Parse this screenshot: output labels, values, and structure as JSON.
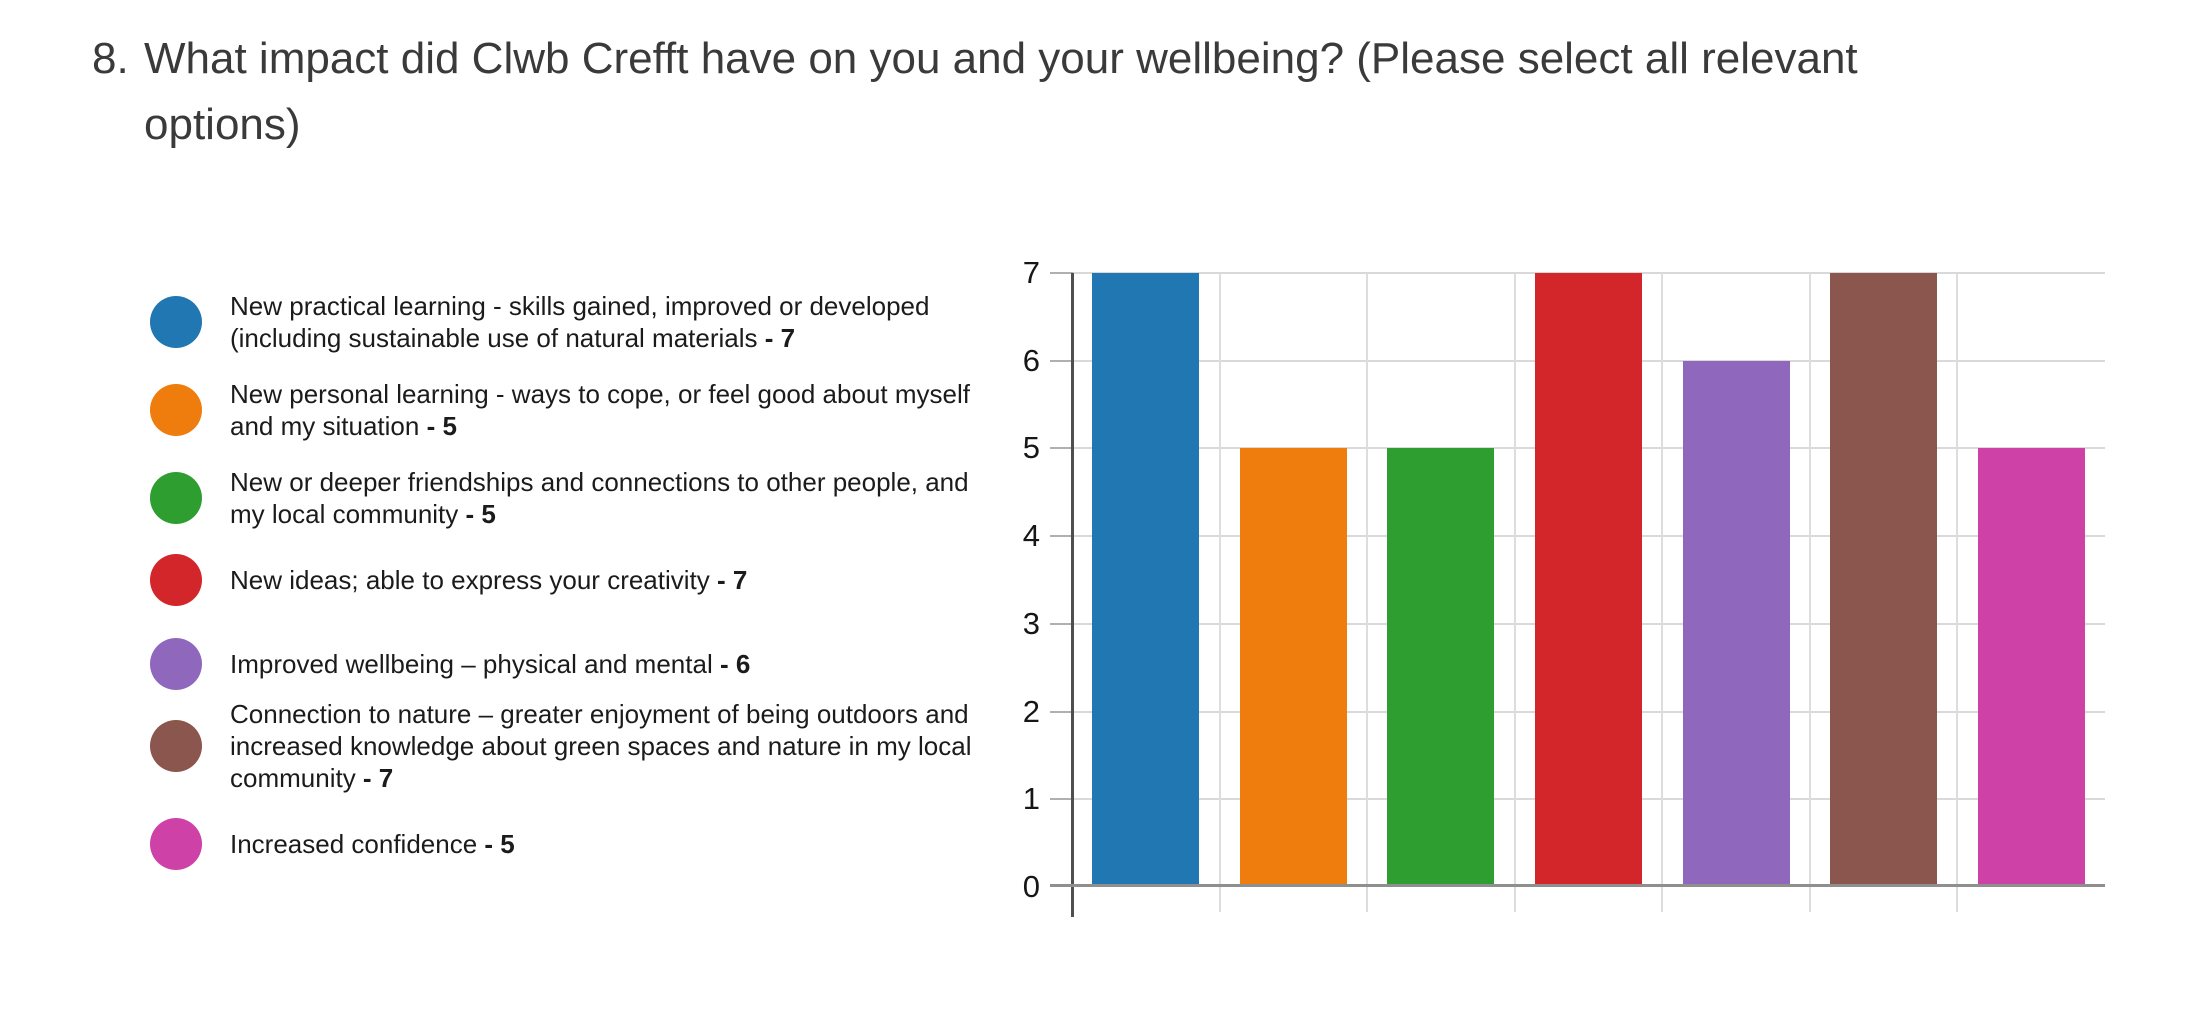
{
  "question": {
    "number": "8.",
    "text": "What impact did Clwb Crefft have on you and your wellbeing? (Please select all relevant options)"
  },
  "legend": {
    "items": [
      {
        "label": "New practical learning - skills gained, improved or developed (including sustainable use of natural materials",
        "value": 7,
        "color": "#2177B2"
      },
      {
        "label": "New personal learning - ways to cope, or feel good about myself and my situation",
        "value": 5,
        "color": "#EE7D0E"
      },
      {
        "label": "New or deeper friendships and connections to other people, and my local community",
        "value": 5,
        "color": "#2F9E31"
      },
      {
        "label": "New ideas; able to express your creativity",
        "value": 7,
        "color": "#D3262A"
      },
      {
        "label": "Improved wellbeing – physical and mental",
        "value": 6,
        "color": "#8F68BE"
      },
      {
        "label": "Connection to nature – greater enjoyment of being outdoors and increased knowledge about green spaces and nature in my local community",
        "value": 7,
        "color": "#8A564D"
      },
      {
        "label": "Increased confidence",
        "value": 5,
        "color": "#CE41A7"
      }
    ]
  },
  "chart_data": {
    "type": "bar",
    "title": "What impact did Clwb Crefft have on you and your wellbeing? (Please select all relevant options)",
    "categories": [
      "New practical learning - skills gained, improved or developed (including sustainable use of natural materials",
      "New personal learning - ways to cope, or feel good about myself and my situation",
      "New or deeper friendships and connections to other people, and my local community",
      "New ideas; able to express your creativity",
      "Improved wellbeing – physical and mental",
      "Connection to nature – greater enjoyment of being outdoors and increased knowledge about green spaces and nature in my local community",
      "Increased confidence"
    ],
    "values": [
      7,
      5,
      5,
      7,
      6,
      7,
      5
    ],
    "colors": [
      "#2177B2",
      "#EE7D0E",
      "#2F9E31",
      "#D3262A",
      "#8F68BE",
      "#8A564D",
      "#CE41A7"
    ],
    "xlabel": "",
    "ylabel": "",
    "ylim": [
      0,
      7
    ],
    "yticks": [
      0,
      1,
      2,
      3,
      4,
      5,
      6,
      7
    ],
    "grid": true,
    "legend_position": "left"
  }
}
